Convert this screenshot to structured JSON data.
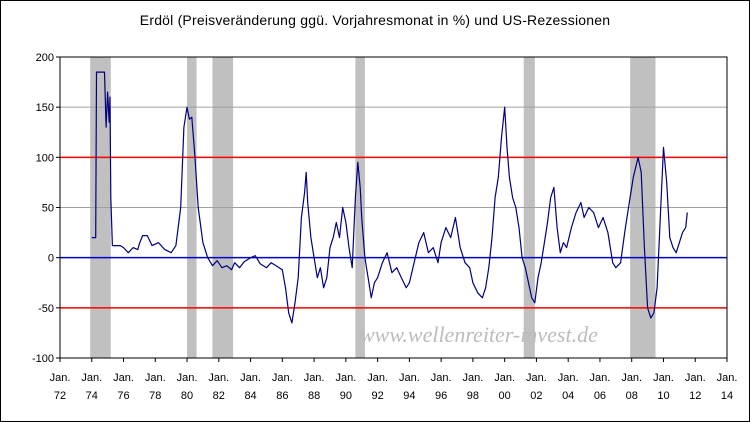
{
  "chart_data": {
    "type": "line",
    "title": "Erdöl (Preisveränderung ggü. Vorjahresmonat in %) und US-Rezessionen",
    "watermark": "www.wellenreiter-invest.de",
    "xlabel": "",
    "ylabel": "",
    "xlim": [
      1972,
      2014
    ],
    "ylim": [
      -100,
      200
    ],
    "yticks": [
      -100,
      -50,
      0,
      50,
      100,
      150,
      200
    ],
    "xticks": [
      {
        "value": 1972,
        "line1": "Jan.",
        "line2": "72"
      },
      {
        "value": 1974,
        "line1": "Jan.",
        "line2": "74"
      },
      {
        "value": 1976,
        "line1": "Jan.",
        "line2": "76"
      },
      {
        "value": 1978,
        "line1": "Jan.",
        "line2": "78"
      },
      {
        "value": 1980,
        "line1": "Jan.",
        "line2": "80"
      },
      {
        "value": 1982,
        "line1": "Jan.",
        "line2": "82"
      },
      {
        "value": 1984,
        "line1": "Jan.",
        "line2": "84"
      },
      {
        "value": 1986,
        "line1": "Jan.",
        "line2": "86"
      },
      {
        "value": 1988,
        "line1": "Jan.",
        "line2": "88"
      },
      {
        "value": 1990,
        "line1": "Jan.",
        "line2": "90"
      },
      {
        "value": 1992,
        "line1": "Jan.",
        "line2": "92"
      },
      {
        "value": 1994,
        "line1": "Jan.",
        "line2": "94"
      },
      {
        "value": 1996,
        "line1": "Jan.",
        "line2": "96"
      },
      {
        "value": 1998,
        "line1": "Jan.",
        "line2": "98"
      },
      {
        "value": 2000,
        "line1": "Jan.",
        "line2": "00"
      },
      {
        "value": 2002,
        "line1": "Jan.",
        "line2": "02"
      },
      {
        "value": 2004,
        "line1": "Jan.",
        "line2": "04"
      },
      {
        "value": 2006,
        "line1": "Jan.",
        "line2": "06"
      },
      {
        "value": 2008,
        "line1": "Jan.",
        "line2": "08"
      },
      {
        "value": 2010,
        "line1": "Jan.",
        "line2": "10"
      },
      {
        "value": 2012,
        "line1": "Jan.",
        "line2": "12"
      },
      {
        "value": 2014,
        "line1": "Jan.",
        "line2": "14"
      }
    ],
    "grid": true,
    "reference_lines": [
      {
        "y": 100,
        "color": "#ff0000"
      },
      {
        "y": 0,
        "color": "#0000cc"
      },
      {
        "y": -50,
        "color": "#ff0000"
      }
    ],
    "recessions": [
      [
        1973.9,
        1975.2
      ],
      [
        1980.0,
        1980.6
      ],
      [
        1981.6,
        1982.9
      ],
      [
        1990.6,
        1991.2
      ],
      [
        2001.2,
        2001.9
      ],
      [
        2007.9,
        2009.5
      ]
    ],
    "series": [
      {
        "color": "#000080",
        "points": [
          [
            1974.0,
            20
          ],
          [
            1974.25,
            20
          ],
          [
            1974.3,
            185
          ],
          [
            1974.6,
            185
          ],
          [
            1974.8,
            185
          ],
          [
            1974.9,
            130
          ],
          [
            1975.0,
            165
          ],
          [
            1975.1,
            135
          ],
          [
            1975.15,
            160
          ],
          [
            1975.2,
            60
          ],
          [
            1975.3,
            12
          ],
          [
            1975.8,
            12
          ],
          [
            1976.0,
            10
          ],
          [
            1976.3,
            5
          ],
          [
            1976.6,
            10
          ],
          [
            1976.9,
            8
          ],
          [
            1977.0,
            14
          ],
          [
            1977.2,
            22
          ],
          [
            1977.5,
            22
          ],
          [
            1977.8,
            12
          ],
          [
            1978.2,
            15
          ],
          [
            1978.6,
            8
          ],
          [
            1979.0,
            5
          ],
          [
            1979.3,
            12
          ],
          [
            1979.6,
            50
          ],
          [
            1979.8,
            130
          ],
          [
            1980.0,
            150
          ],
          [
            1980.15,
            138
          ],
          [
            1980.3,
            140
          ],
          [
            1980.5,
            100
          ],
          [
            1980.7,
            50
          ],
          [
            1981.0,
            15
          ],
          [
            1981.3,
            0
          ],
          [
            1981.6,
            -8
          ],
          [
            1981.9,
            -3
          ],
          [
            1982.2,
            -10
          ],
          [
            1982.5,
            -8
          ],
          [
            1982.8,
            -12
          ],
          [
            1983.0,
            -5
          ],
          [
            1983.3,
            -10
          ],
          [
            1983.6,
            -4
          ],
          [
            1984.0,
            0
          ],
          [
            1984.3,
            2
          ],
          [
            1984.6,
            -6
          ],
          [
            1985.0,
            -10
          ],
          [
            1985.3,
            -5
          ],
          [
            1985.6,
            -8
          ],
          [
            1986.0,
            -12
          ],
          [
            1986.2,
            -30
          ],
          [
            1986.4,
            -55
          ],
          [
            1986.6,
            -65
          ],
          [
            1986.8,
            -45
          ],
          [
            1987.0,
            -20
          ],
          [
            1987.2,
            40
          ],
          [
            1987.4,
            65
          ],
          [
            1987.5,
            85
          ],
          [
            1987.6,
            55
          ],
          [
            1987.8,
            20
          ],
          [
            1988.0,
            0
          ],
          [
            1988.2,
            -20
          ],
          [
            1988.4,
            -10
          ],
          [
            1988.6,
            -30
          ],
          [
            1988.8,
            -20
          ],
          [
            1989.0,
            10
          ],
          [
            1989.2,
            20
          ],
          [
            1989.4,
            35
          ],
          [
            1989.6,
            20
          ],
          [
            1989.8,
            50
          ],
          [
            1990.0,
            35
          ],
          [
            1990.2,
            10
          ],
          [
            1990.4,
            -10
          ],
          [
            1990.6,
            60
          ],
          [
            1990.75,
            95
          ],
          [
            1990.9,
            70
          ],
          [
            1991.0,
            40
          ],
          [
            1991.2,
            0
          ],
          [
            1991.4,
            -20
          ],
          [
            1991.6,
            -40
          ],
          [
            1991.8,
            -25
          ],
          [
            1992.0,
            -20
          ],
          [
            1992.3,
            -5
          ],
          [
            1992.6,
            5
          ],
          [
            1992.9,
            -15
          ],
          [
            1993.2,
            -10
          ],
          [
            1993.5,
            -20
          ],
          [
            1993.8,
            -30
          ],
          [
            1994.0,
            -25
          ],
          [
            1994.3,
            -5
          ],
          [
            1994.6,
            15
          ],
          [
            1994.9,
            25
          ],
          [
            1995.2,
            5
          ],
          [
            1995.5,
            10
          ],
          [
            1995.8,
            -5
          ],
          [
            1996.0,
            15
          ],
          [
            1996.3,
            30
          ],
          [
            1996.6,
            20
          ],
          [
            1996.9,
            40
          ],
          [
            1997.2,
            10
          ],
          [
            1997.5,
            -5
          ],
          [
            1997.8,
            -10
          ],
          [
            1998.0,
            -25
          ],
          [
            1998.3,
            -35
          ],
          [
            1998.6,
            -40
          ],
          [
            1998.8,
            -30
          ],
          [
            1999.0,
            -10
          ],
          [
            1999.2,
            20
          ],
          [
            1999.4,
            60
          ],
          [
            1999.6,
            80
          ],
          [
            1999.8,
            120
          ],
          [
            2000.0,
            150
          ],
          [
            2000.15,
            110
          ],
          [
            2000.3,
            80
          ],
          [
            2000.5,
            60
          ],
          [
            2000.7,
            50
          ],
          [
            2000.9,
            30
          ],
          [
            2001.1,
            0
          ],
          [
            2001.3,
            -10
          ],
          [
            2001.5,
            -25
          ],
          [
            2001.7,
            -40
          ],
          [
            2001.9,
            -45
          ],
          [
            2002.1,
            -20
          ],
          [
            2002.3,
            -5
          ],
          [
            2002.5,
            15
          ],
          [
            2002.7,
            35
          ],
          [
            2002.9,
            60
          ],
          [
            2003.1,
            70
          ],
          [
            2003.3,
            30
          ],
          [
            2003.5,
            5
          ],
          [
            2003.7,
            15
          ],
          [
            2003.9,
            10
          ],
          [
            2004.2,
            30
          ],
          [
            2004.5,
            45
          ],
          [
            2004.8,
            55
          ],
          [
            2005.0,
            40
          ],
          [
            2005.3,
            50
          ],
          [
            2005.6,
            45
          ],
          [
            2005.9,
            30
          ],
          [
            2006.2,
            40
          ],
          [
            2006.5,
            25
          ],
          [
            2006.8,
            -5
          ],
          [
            2007.0,
            -10
          ],
          [
            2007.3,
            -5
          ],
          [
            2007.6,
            30
          ],
          [
            2007.9,
            60
          ],
          [
            2008.1,
            80
          ],
          [
            2008.4,
            100
          ],
          [
            2008.6,
            85
          ],
          [
            2008.8,
            10
          ],
          [
            2009.0,
            -50
          ],
          [
            2009.2,
            -60
          ],
          [
            2009.4,
            -55
          ],
          [
            2009.6,
            -30
          ],
          [
            2009.8,
            40
          ],
          [
            2010.0,
            110
          ],
          [
            2010.2,
            75
          ],
          [
            2010.4,
            20
          ],
          [
            2010.6,
            10
          ],
          [
            2010.8,
            5
          ],
          [
            2011.0,
            15
          ],
          [
            2011.2,
            25
          ],
          [
            2011.4,
            30
          ],
          [
            2011.5,
            45
          ]
        ]
      }
    ]
  }
}
